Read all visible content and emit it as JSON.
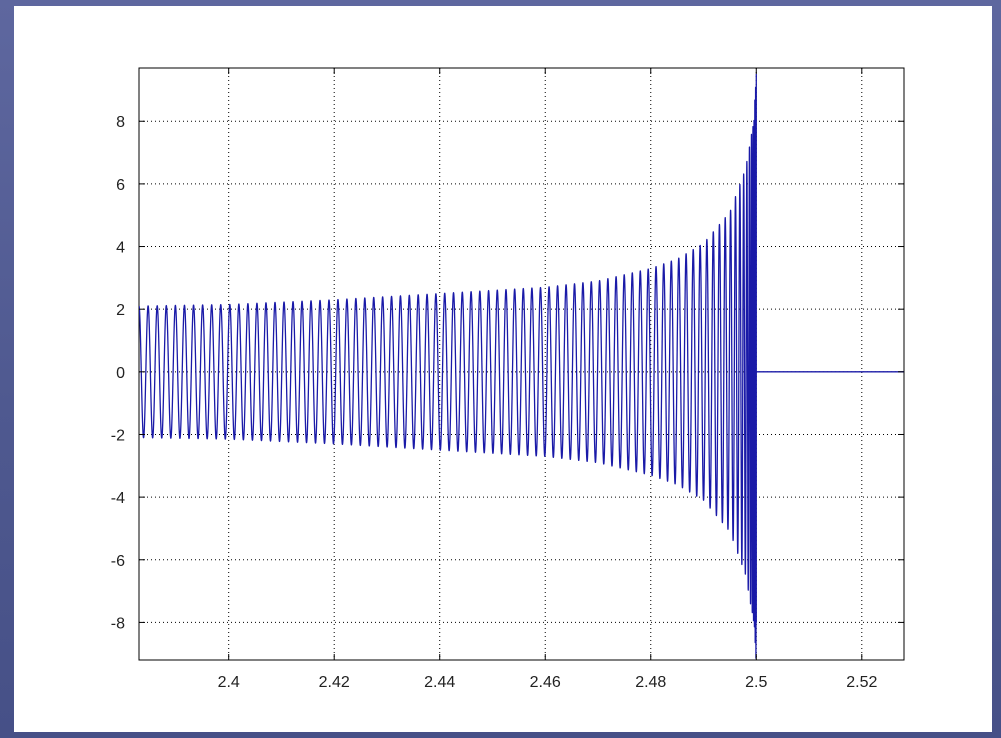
{
  "chart_data": {
    "type": "line",
    "title": "",
    "xlabel": "",
    "ylabel": "",
    "xlim": [
      2.383,
      2.528
    ],
    "ylim": [
      -9.2,
      9.7
    ],
    "grid": true,
    "grid_style": "dotted",
    "xticks": [
      2.4,
      2.42,
      2.44,
      2.46,
      2.48,
      2.5,
      2.52
    ],
    "xtick_labels": [
      "2.4",
      "2.42",
      "2.44",
      "2.46",
      "2.48",
      "2.5",
      "2.52"
    ],
    "yticks": [
      8,
      6,
      4,
      2,
      0,
      -2,
      -4,
      -6,
      -8
    ],
    "ytick_labels": [
      "8",
      "6",
      "4",
      "2",
      "0",
      "-2",
      "-4",
      "-6",
      "-8"
    ],
    "series": [
      {
        "color": "#1a1aa8",
        "description": "oscillation with growing amplitude and increasing frequency up to t=2.5, then zero",
        "signal_end": 2.5,
        "envelope_points": [
          [
            2.383,
            2.1
          ],
          [
            2.4,
            2.15
          ],
          [
            2.42,
            2.3
          ],
          [
            2.44,
            2.5
          ],
          [
            2.46,
            2.7
          ],
          [
            2.47,
            2.9
          ],
          [
            2.48,
            3.3
          ],
          [
            2.485,
            3.6
          ],
          [
            2.49,
            4.1
          ],
          [
            2.495,
            5.1
          ],
          [
            2.498,
            6.5
          ],
          [
            2.4995,
            8.0
          ],
          [
            2.5,
            9.5
          ]
        ],
        "cycles_per_unit_start": 560,
        "after_end_value": 0
      }
    ]
  }
}
